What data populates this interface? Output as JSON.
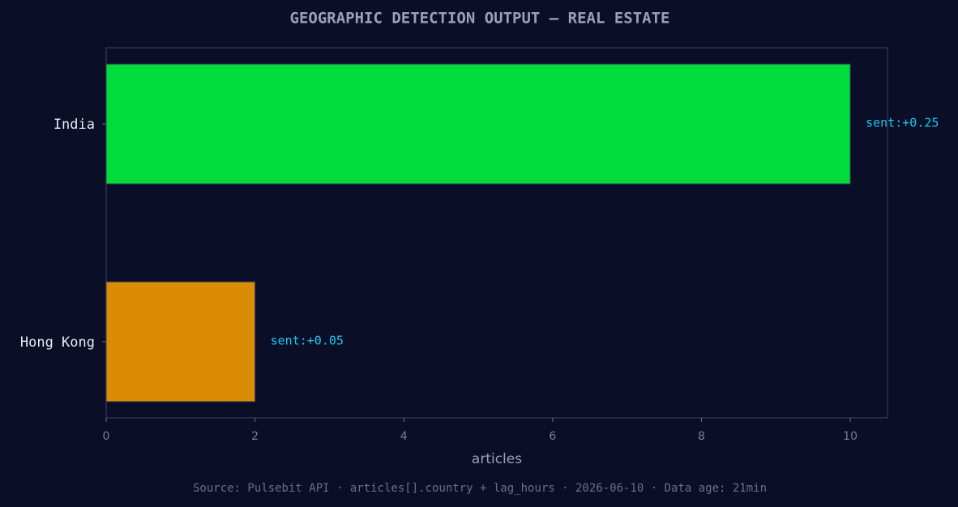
{
  "chart_data": {
    "type": "barh",
    "title": "GEOGRAPHIC DETECTION OUTPUT — REAL ESTATE",
    "categories": [
      "India",
      "Hong Kong"
    ],
    "values": [
      10,
      2
    ],
    "colors": [
      "#00dc3c",
      "#d98c04"
    ],
    "annotations": [
      "sent:+0.25",
      "sent:+0.05"
    ],
    "x_label": "articles",
    "xlim": [
      0,
      10.5
    ],
    "xticks": [
      0,
      2,
      4,
      6,
      8,
      10
    ],
    "footer": "Source: Pulsebit API · articles[].country + lag_hours · 2026-06-10 · Data age: 21min"
  }
}
